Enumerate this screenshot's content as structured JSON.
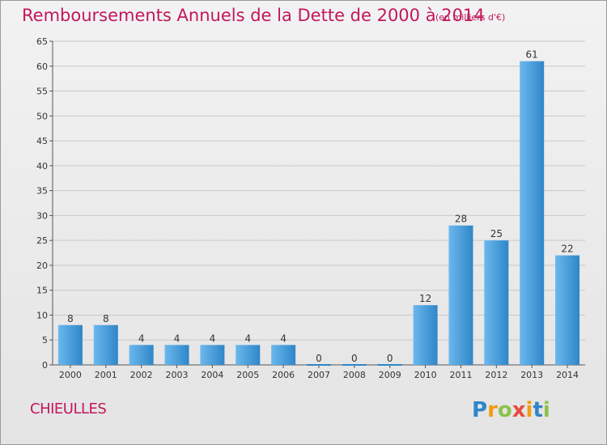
{
  "title": "Remboursements Annuels de la Dette de 2000 à 2014",
  "subtitle": "(en milliers d'€)",
  "commune": "CHIEULLES",
  "logo_text": "Proxiti",
  "colors": {
    "title": "#c2185b",
    "bar_top": "#5aaee8",
    "bar_bottom": "#2a7fc0",
    "grid": "#cccccc"
  },
  "chart_data": {
    "type": "bar",
    "categories": [
      "2000",
      "2001",
      "2002",
      "2003",
      "2004",
      "2005",
      "2006",
      "2007",
      "2008",
      "2009",
      "2010",
      "2011",
      "2012",
      "2013",
      "2014"
    ],
    "values": [
      8,
      8,
      4,
      4,
      4,
      4,
      4,
      0,
      0,
      0,
      12,
      28,
      25,
      61,
      22
    ],
    "ylim": [
      0,
      65
    ],
    "yticks": [
      0,
      5,
      10,
      15,
      20,
      25,
      30,
      35,
      40,
      45,
      50,
      55,
      60,
      65
    ],
    "grid": true,
    "title": "Remboursements Annuels de la Dette de 2000 à 2014",
    "xlabel": "",
    "ylabel": ""
  }
}
